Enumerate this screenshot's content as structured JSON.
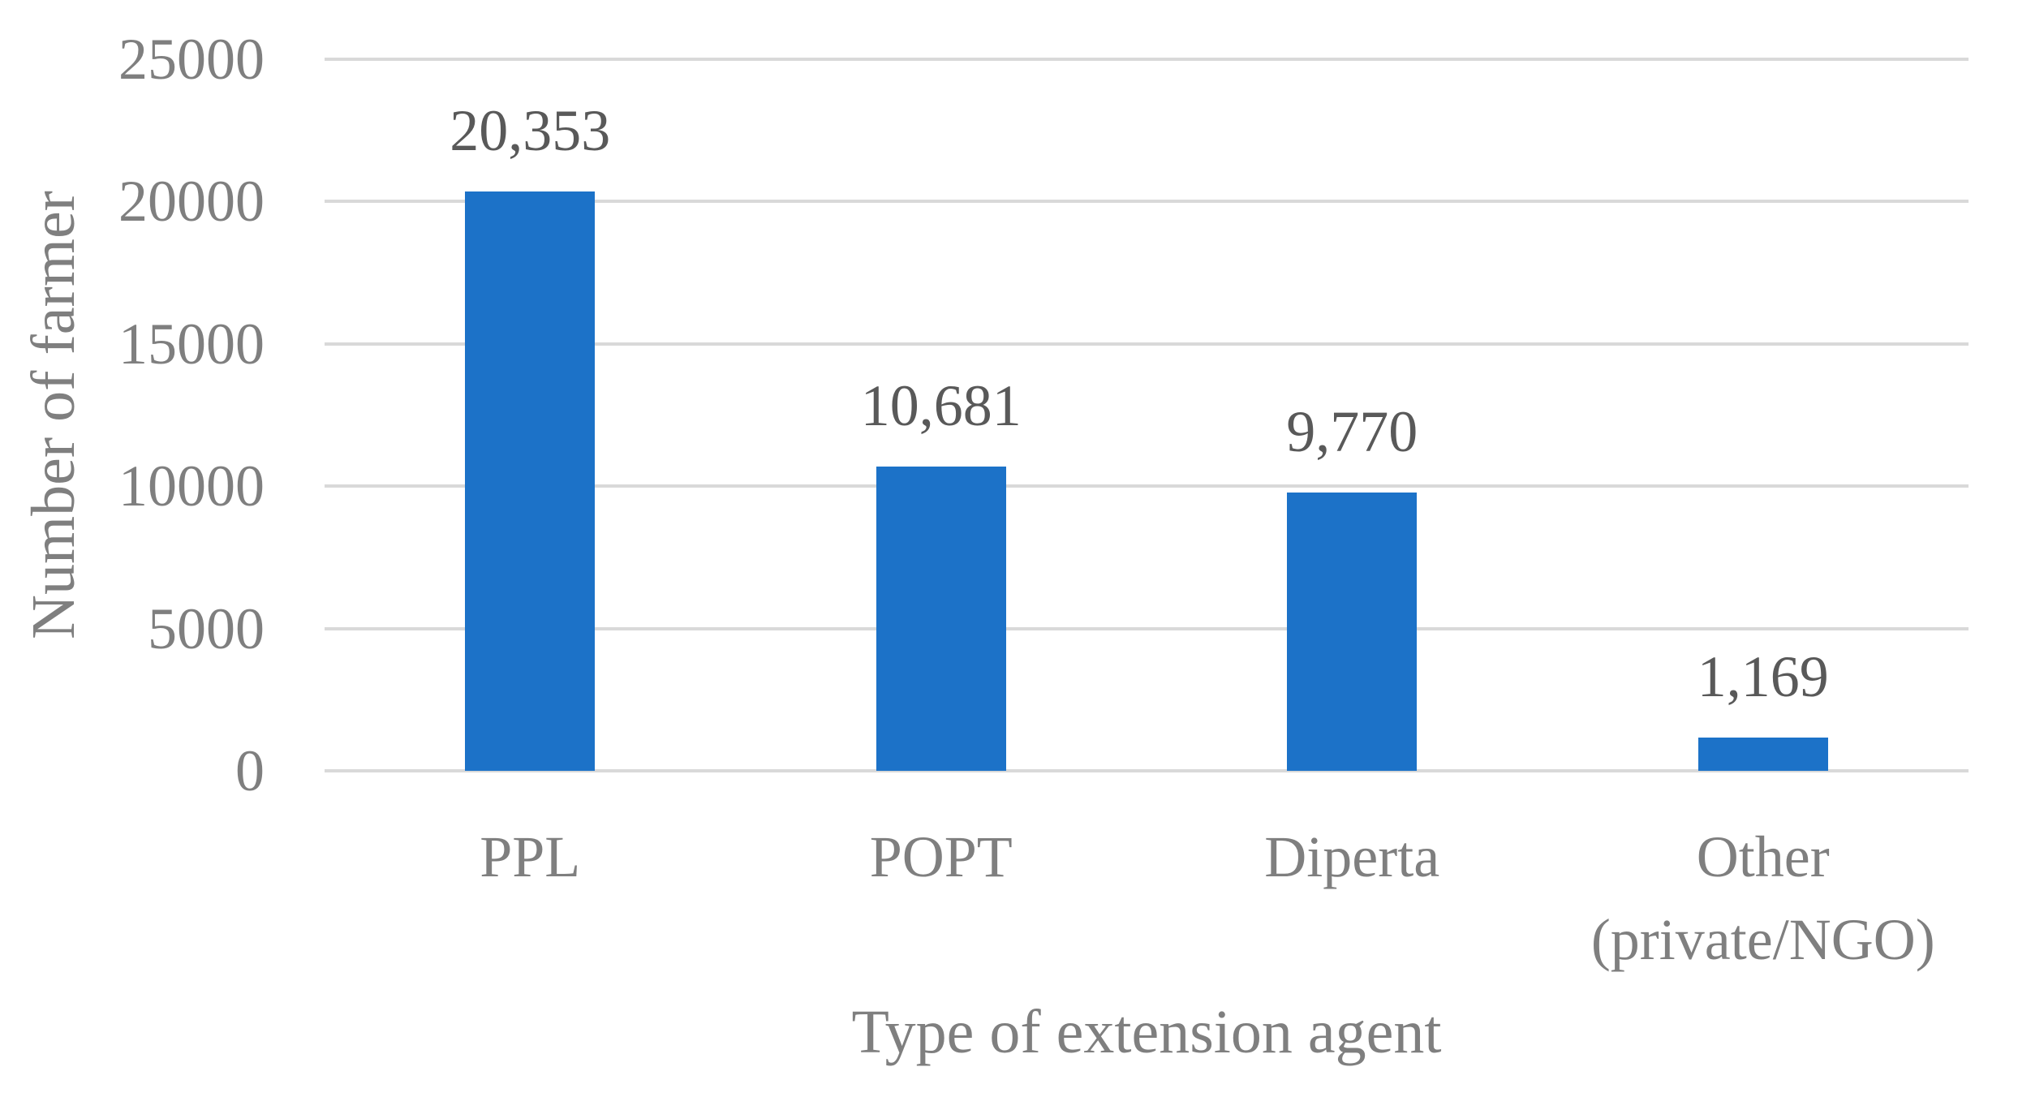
{
  "chart_data": {
    "type": "bar",
    "title": "",
    "xlabel": "Type of extension agent",
    "ylabel": "Number of farmer",
    "categories": [
      "PPL",
      "POPT",
      "Diperta",
      "Other\n(private/NGO)"
    ],
    "values": [
      20353,
      10681,
      9770,
      1169
    ],
    "data_labels": [
      "20,353",
      "10,681",
      "9,770",
      "1,169"
    ],
    "yticks": [
      0,
      5000,
      10000,
      15000,
      20000,
      25000
    ],
    "ylim": [
      0,
      25000
    ],
    "grid": "horizontal-only",
    "legend": "none",
    "colors": {
      "bar": "#1C72C8",
      "gridline": "#D9D9D9",
      "tick_label": "#7F7F7F",
      "axis_title": "#7F7F7F",
      "category_label": "#7F7F7F",
      "data_label": "#595959",
      "background": "#FFFFFF"
    }
  }
}
